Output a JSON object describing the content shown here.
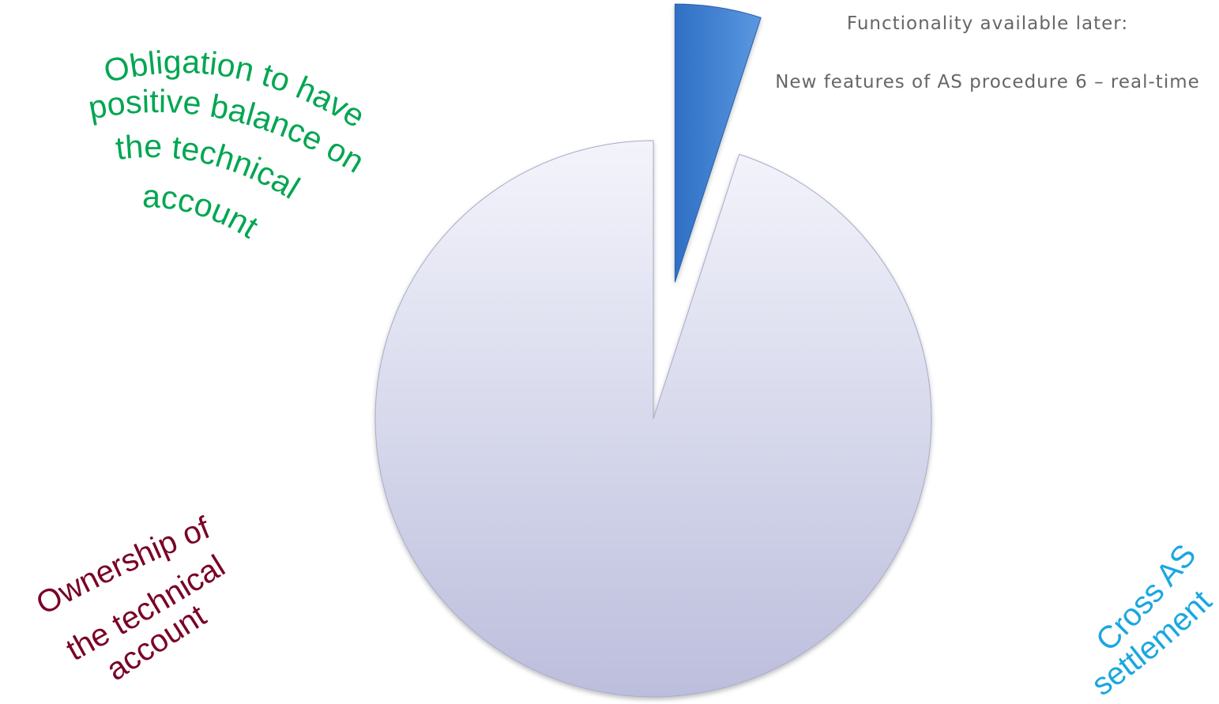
{
  "chart_data": {
    "type": "pie",
    "title": "",
    "slices": [
      {
        "label": "Functionality available later",
        "value": 5,
        "exploded": true
      },
      {
        "label": "",
        "value": 95,
        "exploded": false
      }
    ],
    "colors": {
      "small_slice": "#2f6fc4",
      "small_slice_light": "#5a98e0",
      "large_slice_light": "#f3f4fb",
      "large_slice_dark": "#bcbedd"
    },
    "annotations": {
      "later_title": "Functionality available later:",
      "later_detail": "New features of AS procedure 6 – real-time"
    },
    "curved_labels": [
      {
        "id": "obligation",
        "lines": [
          "Obligation to have",
          "positive balance on",
          "the technical",
          "account"
        ],
        "color": "#00a651"
      },
      {
        "id": "ownership",
        "lines": [
          "Ownership of",
          "the technical",
          "account"
        ],
        "color": "#7a0026"
      },
      {
        "id": "cross",
        "lines": [
          "Cross AS",
          "settlement"
        ],
        "color": "#1aa7e0"
      }
    ],
    "legend": "none"
  }
}
